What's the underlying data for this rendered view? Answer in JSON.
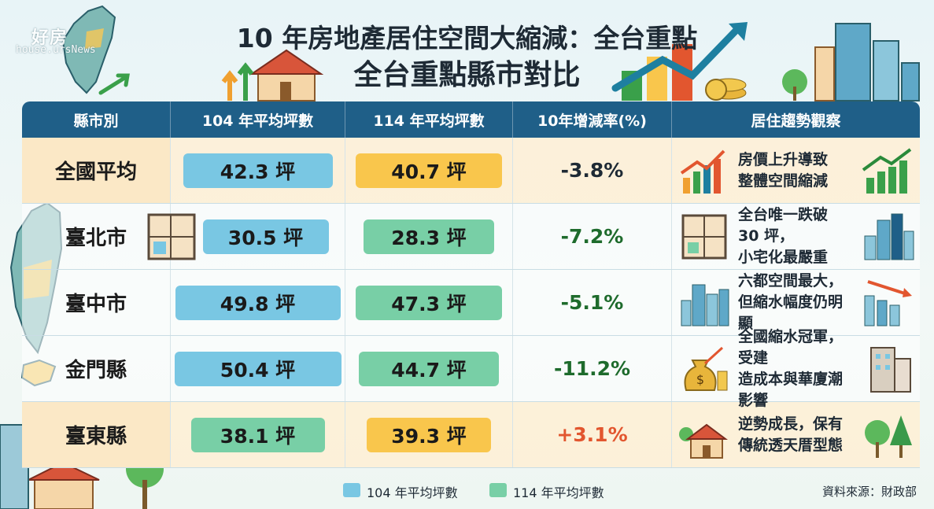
{
  "header": {
    "logo_text": "好房",
    "logo_sub": "house.ursNews",
    "title_line1": "10 年房地產居住空間大縮減：全台重點",
    "title_line2": "全台重點縣市對比"
  },
  "table": {
    "columns": [
      "縣市別",
      "104 年平均坪數",
      "114 年平均坪數",
      "10年增減率(%)",
      "居住趨勢觀察"
    ],
    "rows": [
      {
        "region": "全國平均",
        "y104": "42.3 坪",
        "y114": "40.7 坪",
        "rate": "-3.8%",
        "trend": "房價上升導致\n整體空間縮減"
      },
      {
        "region": "臺北市",
        "y104": "30.5 坪",
        "y114": "28.3 坪",
        "rate": "-7.2%",
        "trend": "全台唯一跌破 30 坪，\n小宅化最嚴重"
      },
      {
        "region": "臺中市",
        "y104": "49.8 坪",
        "y114": "47.3 坪",
        "rate": "-5.1%",
        "trend": "六都空間最大，\n但縮水幅度仍明顯"
      },
      {
        "region": "金門縣",
        "y104": "50.4 坪",
        "y114": "44.7 坪",
        "rate": "-11.2%",
        "trend": "全國縮水冠軍，受建\n造成本與華廈潮影響"
      },
      {
        "region": "臺東縣",
        "y104": "38.1 坪",
        "y114": "39.3 坪",
        "rate": "+3.1%",
        "trend": "逆勢成長，保有\n傳統透天厝型態"
      }
    ]
  },
  "legend": {
    "item1": "104 年平均坪數",
    "item2": "114 年平均坪數",
    "color1": "#79c7e3",
    "color2": "#78cfa6"
  },
  "footer": {
    "source": "資料來源：財政部"
  },
  "colors": {
    "header_bg": "#1f5f88",
    "highlight_row": "#fdefd6",
    "increase_pill": "#f9c64c",
    "negative_rate": "#1e6b2c",
    "positive_rate": "#e2562f"
  }
}
